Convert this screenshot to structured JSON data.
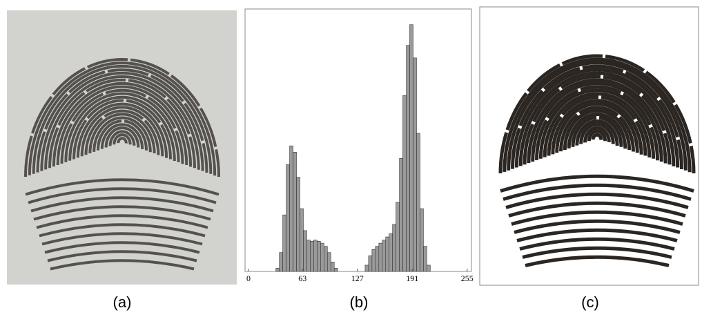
{
  "captions": [
    "(a)",
    "(b)",
    "(c)"
  ],
  "chart_data": {
    "type": "histogram",
    "bins": [
      0,
      4,
      8,
      12,
      16,
      20,
      24,
      28,
      32,
      36,
      40,
      44,
      48,
      52,
      56,
      60,
      64,
      68,
      72,
      76,
      80,
      84,
      88,
      92,
      96,
      100,
      104,
      108,
      112,
      116,
      120,
      124,
      128,
      132,
      136,
      140,
      144,
      148,
      152,
      156,
      160,
      164,
      168,
      172,
      176,
      180,
      184,
      188,
      192,
      196,
      200,
      204,
      208,
      212,
      216,
      220,
      224,
      228,
      232,
      236,
      240,
      244,
      248,
      252,
      256
    ],
    "values": [
      0,
      0,
      0,
      0,
      0,
      0,
      0,
      0,
      0.05,
      0.3,
      0.9,
      1.7,
      2.0,
      1.9,
      1.5,
      1.0,
      0.65,
      0.5,
      0.48,
      0.5,
      0.48,
      0.45,
      0.4,
      0.3,
      0.15,
      0.05,
      0,
      0,
      0,
      0,
      0,
      0,
      0,
      0,
      0.1,
      0.25,
      0.35,
      0.4,
      0.45,
      0.5,
      0.55,
      0.6,
      0.75,
      1.1,
      1.8,
      2.8,
      3.6,
      3.93,
      3.4,
      2.2,
      1.0,
      0.4,
      0.1,
      0,
      0,
      0,
      0,
      0,
      0,
      0,
      0,
      0,
      0,
      0
    ],
    "color": "#9a9a9a",
    "xlim": [
      -4,
      260
    ],
    "xticks": [
      0,
      63,
      127,
      191,
      255
    ],
    "ylim": [
      0,
      4.18
    ]
  }
}
